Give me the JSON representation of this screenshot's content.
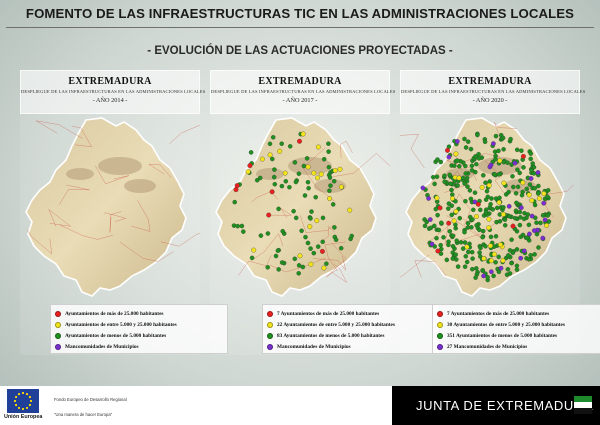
{
  "header": {
    "title": "FOMENTO DE LAS INFRAESTRUCTURAS TIC EN LAS ADMINISTRACIONES LOCALES",
    "subtitle": "- EVOLUCIÓN DE LAS ACTUACIONES PROYECTADAS -"
  },
  "colors": {
    "large": "#e8201f",
    "medium": "#f2e31b",
    "small": "#1f8f1f",
    "mancomunidad": "#7a2fd0"
  },
  "panels": [
    {
      "region": "EXTREMADURA",
      "subtitle": "DESPLIEGUE DE LAS INFRAESTRUCTURAS EN LAS ADMINISTRACIONES LOCALES",
      "year": "- AÑO 2014 -",
      "legend": [
        {
          "label": "Ayuntamientos de más de 25.000 habitantes",
          "icon": "red-dot"
        },
        {
          "label": "Ayuntamientos de entre 5.000 y 25.000 habitantes",
          "icon": "yellow-dot"
        },
        {
          "label": "Ayuntamientos de menos de 5.000 habitantes",
          "icon": "green-dot"
        },
        {
          "label": "Mancomunidades de Municipios",
          "icon": "purple-dot"
        }
      ]
    },
    {
      "region": "EXTREMADURA",
      "subtitle": "DESPLIEGUE DE LAS INFRAESTRUCTURAS EN LAS ADMINISTRACIONES LOCALES",
      "year": "- AÑO 2017 -",
      "legend": [
        {
          "label": "7 Ayuntamientos de más de 25.000 habitantes",
          "icon": "red-dot"
        },
        {
          "label": "22 Ayuntamientos de entre 5.000 y 25.000 habitantes",
          "icon": "yellow-dot"
        },
        {
          "label": "83 Ayuntamientos de menos de 5.000 habitantes",
          "icon": "green-dot"
        },
        {
          "label": "Mancomunidades de Municipios",
          "icon": "purple-dot"
        }
      ]
    },
    {
      "region": "EXTREMADURA",
      "subtitle": "DESPLIEGUE DE LAS INFRAESTRUCTURAS EN LAS ADMINISTRACIONES LOCALES",
      "year": "- AÑO 2020 -",
      "legend": [
        {
          "label": "7 Ayuntamientos de más de 25.000 habitantes",
          "icon": "red-dot"
        },
        {
          "label": "30 Ayuntamientos de entre 5.000 y 25.000 habitantes",
          "icon": "yellow-dot"
        },
        {
          "label": "351 Ayuntamientos de menos de 5.000 habitantes",
          "icon": "green-dot"
        },
        {
          "label": "27 Mancomunidades de Municipios",
          "icon": "purple-dot"
        }
      ]
    }
  ],
  "footer": {
    "eu_label": "Unión Europea",
    "fund": "Fondo Europeo de Desarrollo Regional",
    "motto": "\"Una manera de hacer Europa\"",
    "junta": "JUNTA DE EXTREMADURA"
  }
}
